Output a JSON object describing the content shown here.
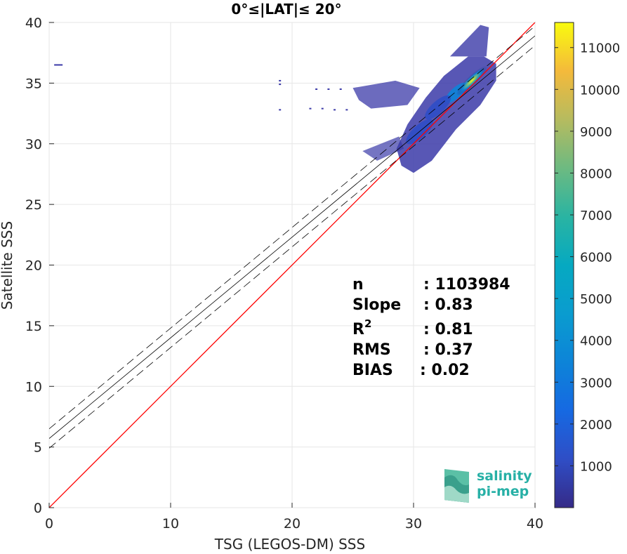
{
  "chart_data": {
    "type": "heatmap",
    "title": "0°≤|LAT|≤ 20°",
    "xlabel": "TSG (LEGOS-DM) SSS",
    "ylabel": "Satellite SSS",
    "xlim": [
      0,
      40
    ],
    "ylim": [
      0,
      40
    ],
    "xticks": [
      "0",
      "10",
      "20",
      "30",
      "40"
    ],
    "yticks": [
      "0",
      "5",
      "10",
      "15",
      "20",
      "25",
      "30",
      "35",
      "40"
    ],
    "grid": true,
    "colorbar": {
      "colormap": "parula",
      "range": [
        0,
        11600
      ],
      "ticks": [
        "1000",
        "2000",
        "3000",
        "4000",
        "5000",
        "6000",
        "7000",
        "8000",
        "9000",
        "10000",
        "11000"
      ]
    },
    "lines": {
      "identity": {
        "slope": 1,
        "intercept": 0,
        "color": "#ff0000"
      },
      "fit": {
        "slope": 0.83,
        "intercept": 5.7,
        "color": "#000000"
      },
      "fit_bounds_offset": 0.8
    },
    "density_core": [
      {
        "x": 34.5,
        "y": 35.0,
        "count": 11000
      },
      {
        "x": 33.5,
        "y": 34.2,
        "count": 4000
      },
      {
        "x": 32.0,
        "y": 33.0,
        "count": 1500
      },
      {
        "x": 30.5,
        "y": 31.0,
        "count": 600
      }
    ],
    "outliers": [
      {
        "x": 0.5,
        "y": 36.5
      },
      {
        "x": 19.0,
        "y": 35.2
      },
      {
        "x": 19.0,
        "y": 34.9
      },
      {
        "x": 19.0,
        "y": 32.8
      },
      {
        "x": 21.5,
        "y": 32.9
      },
      {
        "x": 22.5,
        "y": 32.9
      },
      {
        "x": 22.0,
        "y": 34.5
      },
      {
        "x": 23.0,
        "y": 34.5
      },
      {
        "x": 24.0,
        "y": 34.5
      },
      {
        "x": 23.5,
        "y": 32.8
      },
      {
        "x": 24.5,
        "y": 32.8
      }
    ],
    "stats": [
      {
        "label": "n",
        "value": ": 1103984"
      },
      {
        "label": "Slope",
        "value": ": 0.83"
      },
      {
        "label": "R",
        "sup": "2",
        "value": ": 0.81"
      },
      {
        "label": "RMS",
        "value": ": 0.37"
      },
      {
        "label": "BIAS",
        "value": ": 0.02"
      }
    ]
  },
  "logo": {
    "line1": "salinity",
    "line2": "pi-mep"
  }
}
